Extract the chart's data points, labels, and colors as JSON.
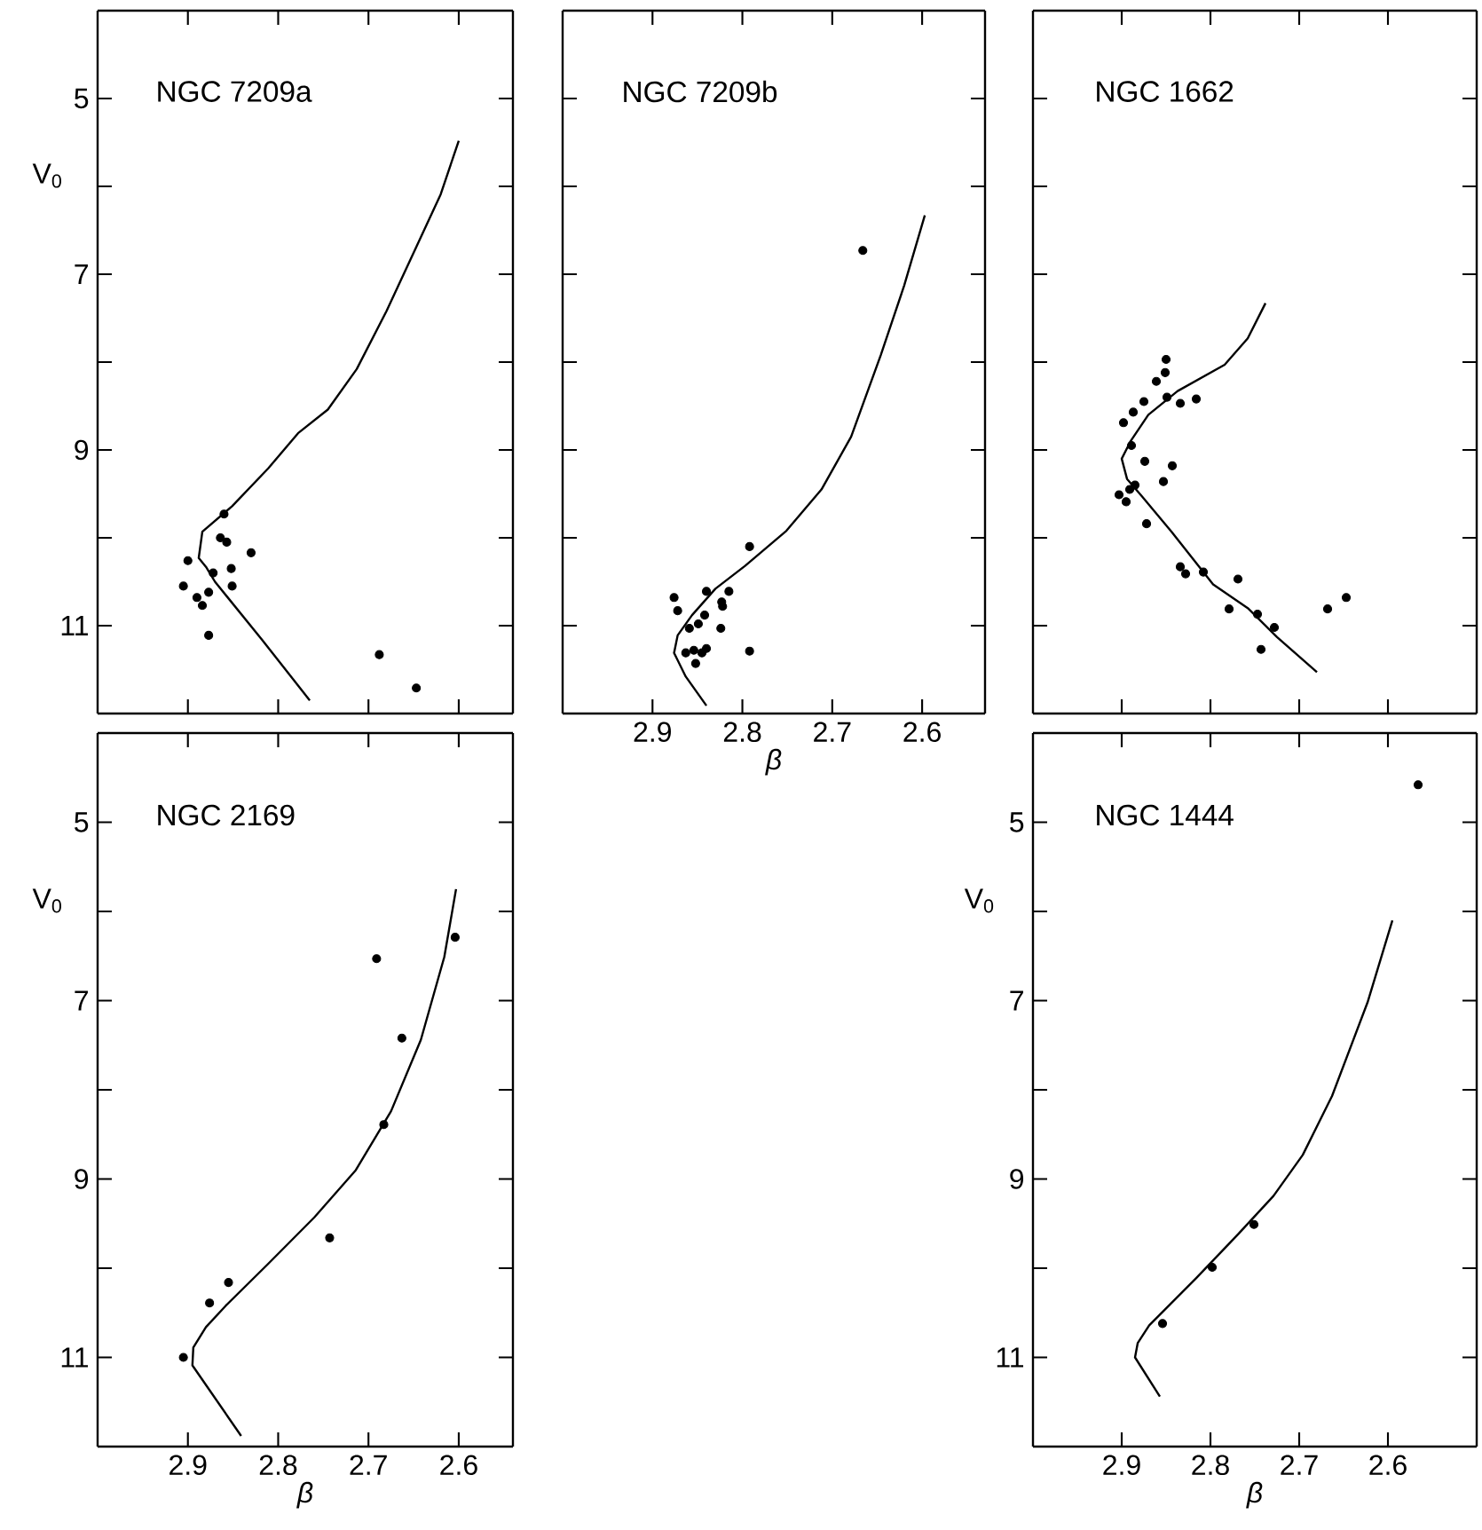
{
  "chart_data": [
    {
      "type": "scatter",
      "title": "NGC 7209a",
      "ylabel": "V$_{0}$",
      "xlim": [
        3.0,
        2.54
      ],
      "ylim": [
        12,
        4
      ],
      "xticks": [
        2.9,
        2.8,
        2.7,
        2.6
      ],
      "yticks": [
        5,
        {
          "value": 6,
          "label": null
        },
        7,
        {
          "value": 8,
          "label": null
        },
        9,
        {
          "value": 10,
          "label": null
        },
        11
      ],
      "tick_labels": "y",
      "series": [
        {
          "type": "scatter",
          "color": "#000000",
          "marker": "circle",
          "x": [
            2.86,
            2.864,
            2.857,
            2.83,
            2.9,
            2.872,
            2.852,
            2.851,
            2.905,
            2.877,
            2.89,
            2.884,
            2.877,
            2.688,
            2.647
          ],
          "values": [
            9.73,
            10.0,
            10.05,
            10.17,
            10.26,
            10.4,
            10.35,
            10.55,
            10.55,
            10.62,
            10.68,
            10.77,
            11.11,
            11.33,
            11.71
          ]
        },
        {
          "type": "line",
          "color": "#000000",
          "x": [
            2.6,
            2.62,
            2.647,
            2.68,
            2.713,
            2.745,
            2.778,
            2.811,
            2.851,
            2.884,
            2.888,
            2.88,
            2.87,
            2.818,
            2.765
          ],
          "values": [
            5.48,
            6.09,
            6.69,
            7.42,
            8.08,
            8.54,
            8.81,
            9.21,
            9.64,
            9.93,
            10.23,
            10.33,
            10.5,
            11.16,
            11.85
          ]
        }
      ]
    },
    {
      "type": "scatter",
      "title": "NGC 7209b",
      "xlabel": "β",
      "xlim": [
        3.0,
        2.53
      ],
      "ylim": [
        12,
        4
      ],
      "xticks": [
        2.9,
        2.8,
        2.7,
        2.6
      ],
      "yticks": [
        {
          "value": 5,
          "label": null
        },
        {
          "value": 6,
          "label": null
        },
        {
          "value": 7,
          "label": null
        },
        {
          "value": 8,
          "label": null
        },
        {
          "value": 9,
          "label": null
        },
        {
          "value": 10,
          "label": null
        },
        {
          "value": 11,
          "label": null
        }
      ],
      "tick_labels": "x",
      "series": [
        {
          "type": "scatter",
          "color": "#000000",
          "marker": "circle",
          "x": [
            2.666,
            2.792,
            2.876,
            2.872,
            2.84,
            2.815,
            2.823,
            2.822,
            2.842,
            2.849,
            2.859,
            2.824,
            2.792,
            2.863,
            2.854,
            2.845,
            2.84,
            2.852
          ],
          "values": [
            6.73,
            10.1,
            10.68,
            10.83,
            10.61,
            10.61,
            10.73,
            10.78,
            10.88,
            10.98,
            11.03,
            11.03,
            11.29,
            11.31,
            11.28,
            11.31,
            11.26,
            11.43
          ]
        },
        {
          "type": "line",
          "color": "#000000",
          "x": [
            2.597,
            2.62,
            2.646,
            2.679,
            2.712,
            2.751,
            2.797,
            2.83,
            2.856,
            2.872,
            2.876,
            2.863,
            2.84
          ],
          "values": [
            6.33,
            7.13,
            7.92,
            8.85,
            9.45,
            9.92,
            10.32,
            10.58,
            10.88,
            11.11,
            11.31,
            11.58,
            11.91
          ]
        }
      ]
    },
    {
      "type": "scatter",
      "title": "NGC 1662",
      "xlim": [
        3.0,
        2.5
      ],
      "ylim": [
        12,
        4
      ],
      "xticks": [
        {
          "value": 2.9,
          "label": null
        },
        {
          "value": 2.8,
          "label": null
        },
        {
          "value": 2.7,
          "label": null
        },
        {
          "value": 2.6,
          "label": null
        }
      ],
      "yticks": [
        {
          "value": 5,
          "label": null
        },
        {
          "value": 6,
          "label": null
        },
        {
          "value": 7,
          "label": null
        },
        {
          "value": 8,
          "label": null
        },
        {
          "value": 9,
          "label": null
        },
        {
          "value": 10,
          "label": null
        },
        {
          "value": 11,
          "label": null
        }
      ],
      "tick_labels": false,
      "series": [
        {
          "type": "scatter",
          "color": "#000000",
          "marker": "circle",
          "x": [
            2.85,
            2.851,
            2.861,
            2.875,
            2.849,
            2.834,
            2.816,
            2.887,
            2.898,
            2.889,
            2.874,
            2.843,
            2.853,
            2.885,
            2.891,
            2.903,
            2.895,
            2.872,
            2.834,
            2.828,
            2.808,
            2.769,
            2.779,
            2.747,
            2.728,
            2.743,
            2.668,
            2.647
          ],
          "values": [
            7.97,
            8.12,
            8.22,
            8.45,
            8.4,
            8.47,
            8.42,
            8.57,
            8.69,
            8.95,
            9.13,
            9.18,
            9.36,
            9.4,
            9.45,
            9.51,
            9.59,
            9.84,
            10.33,
            10.41,
            10.39,
            10.47,
            10.81,
            10.87,
            11.02,
            11.27,
            10.81,
            10.68
          ]
        },
        {
          "type": "line",
          "color": "#000000",
          "x": [
            2.738,
            2.758,
            2.784,
            2.837,
            2.87,
            2.89,
            2.9,
            2.894,
            2.877,
            2.844,
            2.797,
            2.758,
            2.725,
            2.68
          ],
          "values": [
            7.33,
            7.73,
            8.03,
            8.33,
            8.6,
            8.9,
            9.1,
            9.33,
            9.53,
            9.93,
            10.53,
            10.8,
            11.13,
            11.53
          ]
        }
      ]
    },
    {
      "type": "scatter",
      "title": "NGC 2169",
      "xlabel": "β",
      "ylabel": "V$_{0}$",
      "xlim": [
        3.0,
        2.54
      ],
      "ylim": [
        12,
        4
      ],
      "xticks": [
        2.9,
        2.8,
        2.7,
        2.6
      ],
      "yticks": [
        5,
        {
          "value": 6,
          "label": null
        },
        7,
        {
          "value": 8,
          "label": null
        },
        9,
        {
          "value": 10,
          "label": null
        },
        11
      ],
      "series": [
        {
          "type": "scatter",
          "color": "#000000",
          "marker": "circle",
          "x": [
            2.905,
            2.876,
            2.855,
            2.743,
            2.691,
            2.663,
            2.683,
            2.604
          ],
          "values": [
            11.0,
            10.39,
            10.16,
            9.66,
            6.53,
            7.42,
            8.39,
            6.29
          ]
        },
        {
          "type": "line",
          "color": "#000000",
          "x": [
            2.603,
            2.616,
            2.642,
            2.675,
            2.714,
            2.76,
            2.812,
            2.858,
            2.88,
            2.894,
            2.895,
            2.841
          ],
          "values": [
            5.75,
            6.51,
            7.44,
            8.24,
            8.9,
            9.43,
            9.96,
            10.42,
            10.66,
            10.89,
            11.09,
            11.88
          ]
        }
      ]
    },
    {
      "type": "scatter",
      "title": "NGC 1444",
      "xlabel": "β",
      "ylabel": "V$_{0}$",
      "xlim": [
        3.0,
        2.5
      ],
      "ylim": [
        12,
        4
      ],
      "xticks": [
        2.9,
        2.8,
        2.7,
        2.6
      ],
      "yticks": [
        5,
        {
          "value": 6,
          "label": null
        },
        7,
        {
          "value": 8,
          "label": null
        },
        9,
        {
          "value": 10,
          "label": null
        },
        11
      ],
      "series": [
        {
          "type": "scatter",
          "color": "#000000",
          "marker": "circle",
          "x": [
            2.566,
            2.751,
            2.798,
            2.854
          ],
          "values": [
            4.58,
            9.51,
            9.99,
            10.62
          ]
        },
        {
          "type": "line",
          "color": "#000000",
          "x": [
            2.595,
            2.623,
            2.663,
            2.696,
            2.729,
            2.769,
            2.816,
            2.869,
            2.882,
            2.885,
            2.857
          ],
          "values": [
            6.1,
            7.02,
            8.07,
            8.73,
            9.19,
            9.62,
            10.11,
            10.64,
            10.84,
            11.0,
            11.44
          ]
        }
      ]
    }
  ]
}
